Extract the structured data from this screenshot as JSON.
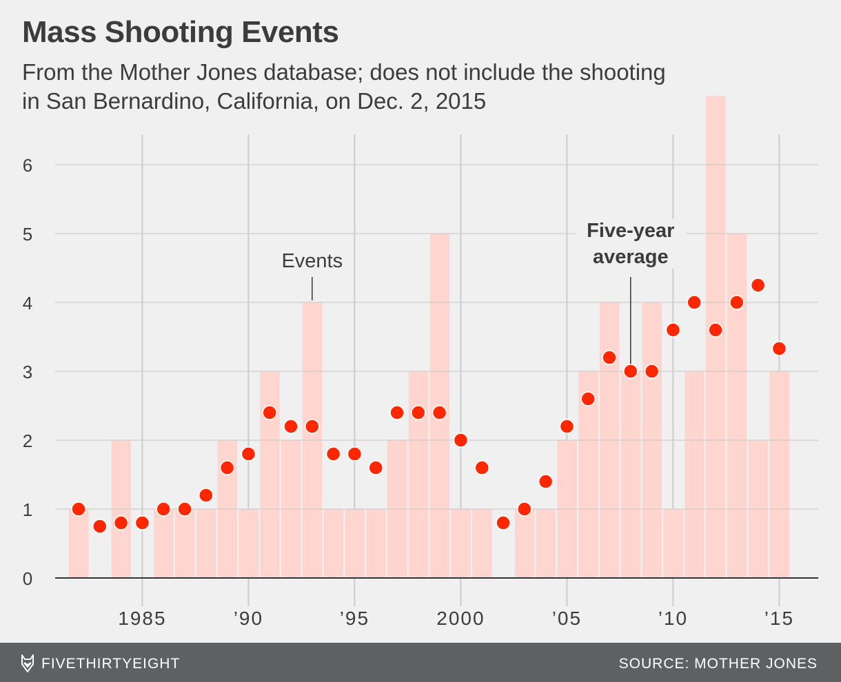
{
  "header": {
    "title": "Mass Shooting Events",
    "subtitle_lines": [
      "From the Mother Jones database; does not include the shooting",
      "in San Bernardino, California, on Dec. 2, 2015"
    ]
  },
  "footer": {
    "brand": "FIVETHIRTYEIGHT",
    "source": "SOURCE: MOTHER JONES",
    "logo_icon": "fox-logo-icon"
  },
  "colors": {
    "bars": "#ffd5cf",
    "dots": "#ff2700",
    "background": "#f0f0f0",
    "grid": "#cccccc"
  },
  "chart_data": {
    "type": "bar",
    "title": "Mass Shooting Events",
    "x": [
      1982,
      1983,
      1984,
      1985,
      1986,
      1987,
      1988,
      1989,
      1990,
      1991,
      1992,
      1993,
      1994,
      1995,
      1996,
      1997,
      1998,
      1999,
      2000,
      2001,
      2002,
      2003,
      2004,
      2005,
      2006,
      2007,
      2008,
      2009,
      2010,
      2011,
      2012,
      2013,
      2014,
      2015
    ],
    "series": [
      {
        "name": "Events",
        "type": "bar",
        "values": [
          1,
          0,
          2,
          0,
          1,
          1,
          1,
          2,
          1,
          3,
          2,
          4,
          1,
          1,
          1,
          2,
          3,
          5,
          1,
          1,
          0,
          1,
          1,
          2,
          3,
          4,
          3,
          4,
          1,
          3,
          7,
          5,
          2,
          3
        ]
      },
      {
        "name": "Five-year average",
        "type": "scatter",
        "values": [
          1,
          0.75,
          0.8,
          0.8,
          1,
          1,
          1.2,
          1.6,
          1.8,
          2.4,
          2.2,
          2.2,
          1.8,
          1.8,
          1.6,
          2.4,
          2.4,
          2.4,
          2,
          1.6,
          0.8,
          1,
          1.4,
          2.2,
          2.6,
          3.2,
          3,
          3,
          3.6,
          4,
          3.6,
          4,
          4.25,
          3.33
        ]
      }
    ],
    "xticks": [
      {
        "value": 1985,
        "label": "1985"
      },
      {
        "value": 1990,
        "label": "’90"
      },
      {
        "value": 1995,
        "label": "’95"
      },
      {
        "value": 2000,
        "label": "2000"
      },
      {
        "value": 2005,
        "label": "’05"
      },
      {
        "value": 2010,
        "label": "’10"
      },
      {
        "value": 2015,
        "label": "’15"
      }
    ],
    "yticks": [
      0,
      1,
      2,
      3,
      4,
      5,
      6
    ],
    "ylim": [
      0,
      7
    ],
    "xlim": [
      1981,
      2016
    ],
    "grid": true,
    "annotations": [
      {
        "text_lines": [
          "Events"
        ],
        "year": 1993,
        "value": 4,
        "bold": false
      },
      {
        "text_lines": [
          "Five-year",
          "average"
        ],
        "year": 2008,
        "value": 3,
        "bold": true
      }
    ],
    "xlabel": "",
    "ylabel": ""
  }
}
